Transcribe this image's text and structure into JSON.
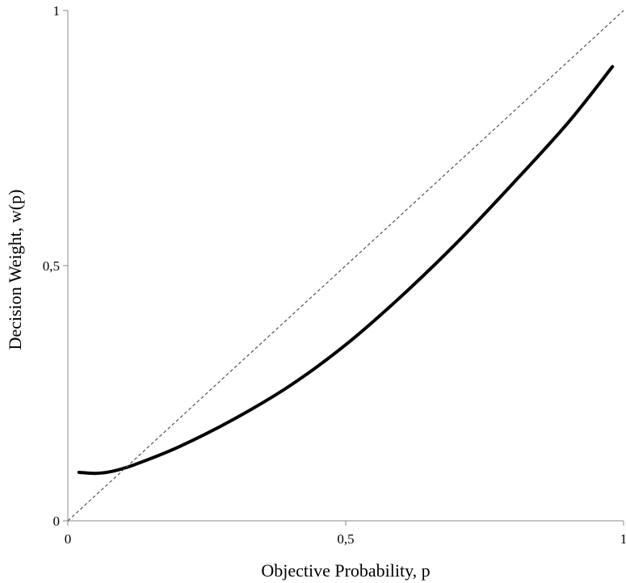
{
  "chart_data": {
    "type": "line",
    "title": "",
    "xlabel": "Objective Probability, p",
    "ylabel": "Decision Weight,  w(p)",
    "xlim": [
      0,
      1
    ],
    "ylim": [
      0,
      1
    ],
    "x_ticks": [
      {
        "value": 0,
        "label": "0"
      },
      {
        "value": 0.5,
        "label": "0,5"
      },
      {
        "value": 1,
        "label": "1"
      }
    ],
    "y_ticks": [
      {
        "value": 0,
        "label": "0"
      },
      {
        "value": 0.5,
        "label": "0,5"
      },
      {
        "value": 1,
        "label": "1"
      }
    ],
    "grid": false,
    "series": [
      {
        "style": "solid-thick",
        "color": "#000000",
        "x": [
          0.02,
          0.05,
          0.08,
          0.12,
          0.2,
          0.3,
          0.4,
          0.5,
          0.6,
          0.7,
          0.8,
          0.9,
          0.98
        ],
        "y": [
          0.095,
          0.093,
          0.097,
          0.11,
          0.145,
          0.2,
          0.265,
          0.345,
          0.44,
          0.545,
          0.66,
          0.78,
          0.89
        ]
      },
      {
        "style": "dashed-thin",
        "color": "#555555",
        "x": [
          0,
          1
        ],
        "y": [
          0,
          1
        ]
      }
    ]
  }
}
